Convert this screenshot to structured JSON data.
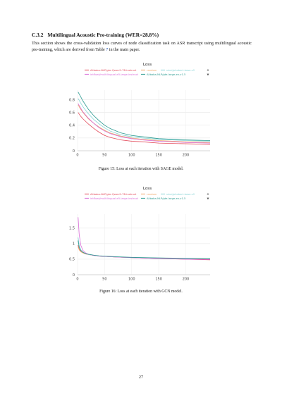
{
  "section": {
    "number": "C.3.2",
    "title": "Multilingual Acoustic Pre-training (WER=28.8%)",
    "body_before": "This section shows the cross-validation loss curves of node classification task on ASR transcript using multilingual acoustic pre-training, which are derived from Table ",
    "table_ref": "7",
    "body_after": " in the main paper."
  },
  "figures": [
    {
      "caption": "Figure 15: Loss at each iteration with SAGE model."
    },
    {
      "caption": "Figure 16: Loss at each iteration with GCN model."
    }
  ],
  "page_number": "27",
  "legend_nav": {
    "up": "▲",
    "down": "▼"
  },
  "chart_data": [
    {
      "type": "line",
      "title": "Loss",
      "xlabel": "",
      "ylabel": "",
      "xlim": [
        0,
        245
      ],
      "ylim": [
        0,
        0.95
      ],
      "x_ticks": [
        0,
        50,
        100,
        150,
        200
      ],
      "y_ticks": [
        0,
        0.2,
        0.4,
        0.6,
        0.8
      ],
      "grid": true,
      "legend": "top",
      "series": [
        {
          "name": "Alibaba-NLP/gte-Qwen2-7B-instruct",
          "color": "#e34a5a",
          "x": [
            1,
            5,
            10,
            20,
            30,
            40,
            50,
            60,
            80,
            100,
            120,
            150,
            200,
            245
          ],
          "values": [
            0.6,
            0.55,
            0.5,
            0.42,
            0.35,
            0.29,
            0.24,
            0.21,
            0.17,
            0.15,
            0.14,
            0.12,
            0.11,
            0.1
          ]
        },
        {
          "name": "random",
          "color": "#f0a868",
          "x": [
            1,
            5,
            10,
            20,
            30,
            40,
            50,
            60,
            80,
            100,
            120,
            150,
            200,
            245
          ],
          "values": [
            0.72,
            0.66,
            0.6,
            0.5,
            0.43,
            0.37,
            0.32,
            0.28,
            0.23,
            0.2,
            0.18,
            0.16,
            0.14,
            0.13
          ]
        },
        {
          "name": "sinai/phobert-base-v2",
          "color": "#88d4d6",
          "x": [
            1,
            5,
            10,
            20,
            30,
            40,
            50,
            60,
            80,
            100,
            120,
            150,
            200,
            245
          ],
          "values": [
            0.82,
            0.76,
            0.69,
            0.58,
            0.49,
            0.42,
            0.36,
            0.31,
            0.25,
            0.22,
            0.2,
            0.18,
            0.16,
            0.15
          ]
        },
        {
          "name": "intfloat/multilingual-e5-large-instruct",
          "color": "#d86ad8",
          "x": [
            1,
            5,
            10,
            20,
            30,
            40,
            50,
            60,
            80,
            100,
            120,
            150,
            200,
            245
          ],
          "values": [
            0.74,
            0.68,
            0.61,
            0.51,
            0.43,
            0.36,
            0.31,
            0.27,
            0.22,
            0.19,
            0.17,
            0.15,
            0.13,
            0.12
          ]
        },
        {
          "name": "Alibaba-NLP/gte-large-en-v1.5",
          "color": "#2a9a90",
          "x": [
            1,
            5,
            10,
            20,
            30,
            40,
            50,
            60,
            80,
            100,
            120,
            150,
            200,
            245
          ],
          "values": [
            0.92,
            0.86,
            0.78,
            0.65,
            0.55,
            0.47,
            0.4,
            0.35,
            0.28,
            0.24,
            0.22,
            0.19,
            0.17,
            0.16
          ]
        }
      ]
    },
    {
      "type": "line",
      "title": "Loss",
      "xlabel": "",
      "ylabel": "",
      "xlim": [
        0,
        245
      ],
      "ylim": [
        0,
        1.95
      ],
      "x_ticks": [
        0,
        50,
        100,
        150,
        200
      ],
      "y_ticks": [
        0,
        0.5,
        1,
        1.5
      ],
      "grid": true,
      "legend": "top",
      "series": [
        {
          "name": "Alibaba-NLP/gte-Qwen2-7B-instruct",
          "color": "#e34a5a",
          "x": [
            1,
            3,
            6,
            10,
            15,
            20,
            30,
            40,
            50,
            70,
            100,
            150,
            200,
            245
          ],
          "values": [
            0.95,
            0.82,
            0.75,
            0.71,
            0.67,
            0.65,
            0.62,
            0.6,
            0.59,
            0.57,
            0.55,
            0.52,
            0.5,
            0.48
          ]
        },
        {
          "name": "random",
          "color": "#f0a868",
          "x": [
            1,
            3,
            6,
            10,
            15,
            20,
            30,
            40,
            50,
            70,
            100,
            150,
            200,
            245
          ],
          "values": [
            0.9,
            0.8,
            0.74,
            0.7,
            0.67,
            0.65,
            0.62,
            0.6,
            0.59,
            0.57,
            0.55,
            0.53,
            0.51,
            0.5
          ]
        },
        {
          "name": "sinai/phobert-base-v2",
          "color": "#88d4d6",
          "x": [
            1,
            3,
            6,
            10,
            15,
            20,
            30,
            40,
            50,
            70,
            100,
            150,
            200,
            245
          ],
          "values": [
            1.2,
            0.95,
            0.8,
            0.73,
            0.68,
            0.65,
            0.62,
            0.6,
            0.59,
            0.57,
            0.55,
            0.54,
            0.52,
            0.51
          ]
        },
        {
          "name": "intfloat/multilingual-e5-large-instruct",
          "color": "#d86ad8",
          "x": [
            1,
            3,
            6,
            10,
            15,
            20,
            30,
            40,
            50,
            70,
            100,
            150,
            200,
            245
          ],
          "values": [
            1.85,
            1.3,
            0.95,
            0.78,
            0.7,
            0.66,
            0.62,
            0.6,
            0.59,
            0.57,
            0.55,
            0.52,
            0.5,
            0.49
          ]
        },
        {
          "name": "Alibaba-NLP/gte-large-en-v1.5",
          "color": "#2a9a90",
          "x": [
            1,
            3,
            6,
            10,
            15,
            20,
            30,
            40,
            50,
            70,
            100,
            150,
            200,
            245
          ],
          "values": [
            1.1,
            0.88,
            0.78,
            0.72,
            0.68,
            0.66,
            0.63,
            0.61,
            0.6,
            0.58,
            0.56,
            0.54,
            0.53,
            0.52
          ]
        }
      ]
    }
  ]
}
